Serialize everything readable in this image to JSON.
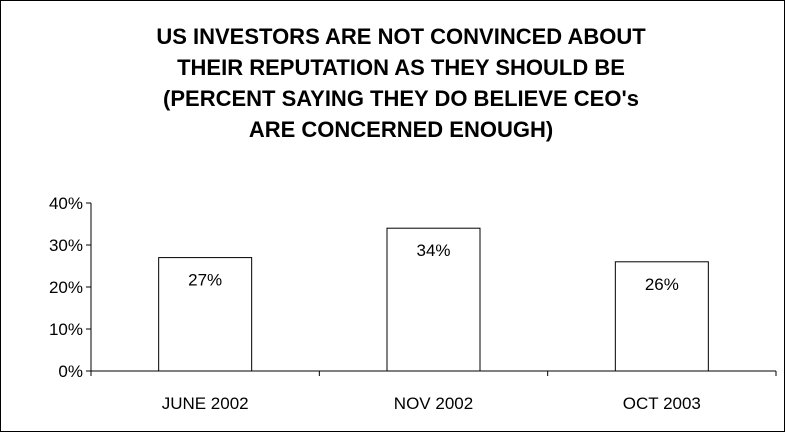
{
  "chart_data": {
    "type": "bar",
    "title_lines": [
      "US INVESTORS ARE NOT CONVINCED ABOUT",
      "THEIR REPUTATION AS THEY SHOULD BE",
      "(PERCENT SAYING THEY DO BELIEVE CEO's",
      "ARE CONCERNED ENOUGH)"
    ],
    "categories": [
      "JUNE 2002",
      "NOV 2002",
      "OCT 2003"
    ],
    "values": [
      27,
      34,
      26
    ],
    "data_labels": [
      "27%",
      "34%",
      "26%"
    ],
    "ylim": [
      0,
      40
    ],
    "yticks": [
      0,
      10,
      20,
      30,
      40
    ],
    "ytick_labels": [
      "0%",
      "10%",
      "20%",
      "30%",
      "40%"
    ],
    "xlabel": "",
    "ylabel": "",
    "grid": false,
    "legend": "none",
    "bar_fill": "#ffffff",
    "bar_stroke": "#000000"
  }
}
